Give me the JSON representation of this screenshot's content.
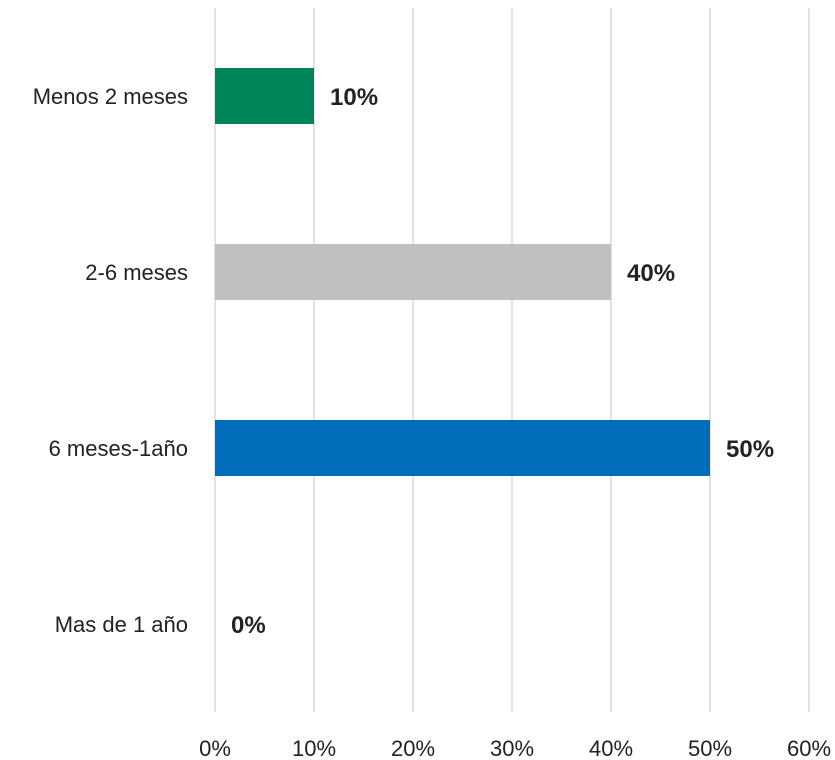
{
  "chart_data": {
    "type": "bar",
    "orientation": "horizontal",
    "categories": [
      "Menos 2 meses",
      "2-6 meses",
      "6 meses-1año",
      "Mas de 1 año"
    ],
    "values": [
      10,
      40,
      50,
      0
    ],
    "value_labels": [
      "10%",
      "40%",
      "50%",
      "0%"
    ],
    "colors": [
      "#00845a",
      "#bfbfbf",
      "#006dba",
      "#ffffff"
    ],
    "xlim": [
      0,
      60
    ],
    "x_ticks": [
      0,
      10,
      20,
      30,
      40,
      50,
      60
    ],
    "x_tick_labels": [
      "0%",
      "10%",
      "20%",
      "30%",
      "40%",
      "50%",
      "60%"
    ],
    "grid": "vertical",
    "legend": "none",
    "title": "",
    "xlabel": "",
    "ylabel": ""
  }
}
